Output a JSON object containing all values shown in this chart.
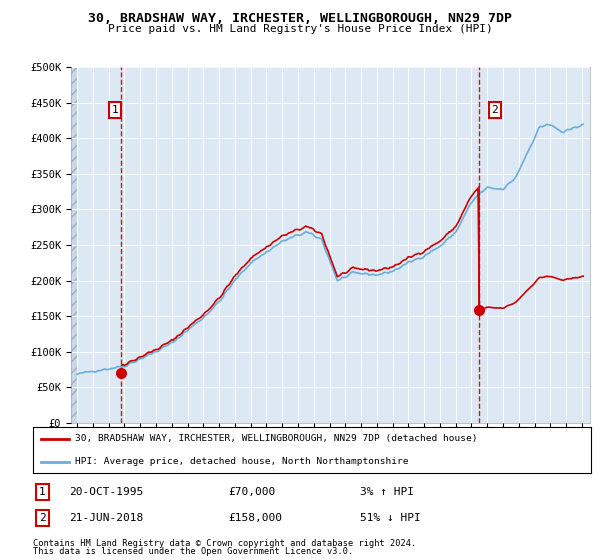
{
  "title1": "30, BRADSHAW WAY, IRCHESTER, WELLINGBOROUGH, NN29 7DP",
  "title2": "Price paid vs. HM Land Registry's House Price Index (HPI)",
  "sale1_date": 1995.79,
  "sale1_price": 70000,
  "sale1_label": "1",
  "sale2_date": 2018.47,
  "sale2_price": 158000,
  "sale2_label": "2",
  "legend_line1": "30, BRADSHAW WAY, IRCHESTER, WELLINGBOROUGH, NN29 7DP (detached house)",
  "legend_line2": "HPI: Average price, detached house, North Northamptonshire",
  "footer1": "Contains HM Land Registry data © Crown copyright and database right 2024.",
  "footer2": "This data is licensed under the Open Government Licence v3.0.",
  "table_row1_num": "1",
  "table_row1_date": "20-OCT-1995",
  "table_row1_price": "£70,000",
  "table_row1_hpi": "3% ↑ HPI",
  "table_row2_num": "2",
  "table_row2_date": "21-JUN-2018",
  "table_row2_price": "£158,000",
  "table_row2_hpi": "51% ↓ HPI",
  "hpi_color": "#6baed6",
  "price_color": "#cc0000",
  "vline_color": "#cc0000",
  "bg_color": "#dce9f5",
  "hatch_color": "#b0c4d8",
  "ylim_max": 500000,
  "xlim_min": 1992.6,
  "xlim_max": 2025.5,
  "hpi_at_sale1": 68000,
  "hpi_at_sale2": 322000
}
